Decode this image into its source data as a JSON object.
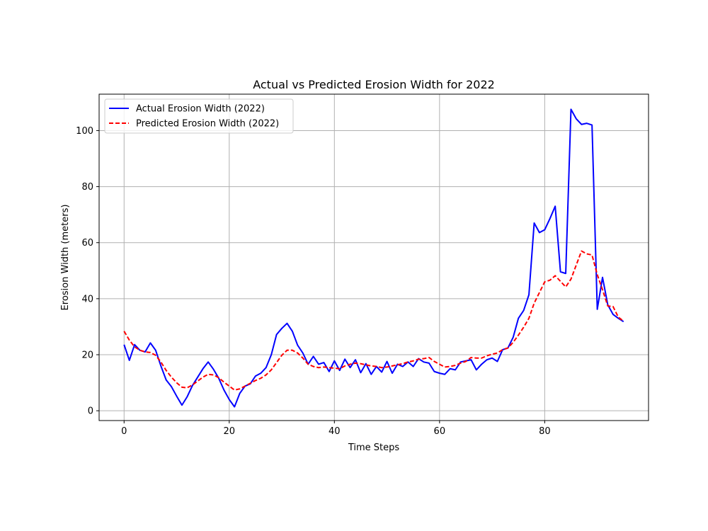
{
  "chart_data": {
    "type": "line",
    "title": "Actual vs Predicted Erosion Width for 2022",
    "xlabel": "Time Steps",
    "ylabel": "Erosion Width (meters)",
    "xlim": [
      -4.75,
      99.75
    ],
    "ylim": [
      -3.5,
      113
    ],
    "xticks": [
      0,
      20,
      40,
      60,
      80
    ],
    "yticks": [
      0,
      20,
      40,
      60,
      80,
      100
    ],
    "grid": true,
    "legend_position": "top-left",
    "x": [
      0,
      1,
      2,
      3,
      4,
      5,
      6,
      7,
      8,
      9,
      10,
      11,
      12,
      13,
      14,
      15,
      16,
      17,
      18,
      19,
      20,
      21,
      22,
      23,
      24,
      25,
      26,
      27,
      28,
      29,
      30,
      31,
      32,
      33,
      34,
      35,
      36,
      37,
      38,
      39,
      40,
      41,
      42,
      43,
      44,
      45,
      46,
      47,
      48,
      49,
      50,
      51,
      52,
      53,
      54,
      55,
      56,
      57,
      58,
      59,
      60,
      61,
      62,
      63,
      64,
      65,
      66,
      67,
      68,
      69,
      70,
      71,
      72,
      73,
      74,
      75,
      76,
      77,
      78,
      79,
      80,
      81,
      82,
      83,
      84,
      85,
      86,
      87,
      88,
      89,
      90,
      91,
      92,
      93,
      94,
      95
    ],
    "series": [
      {
        "name": "Actual Erosion Width (2022)",
        "color": "#0000ff",
        "style": "solid",
        "values": [
          23.6,
          18.0,
          23.6,
          21.6,
          21.0,
          24.2,
          21.6,
          16.0,
          11.0,
          8.6,
          5.2,
          2.0,
          5.0,
          9.0,
          12.0,
          15.0,
          17.4,
          14.8,
          11.6,
          7.4,
          4.0,
          1.4,
          6.2,
          8.8,
          9.6,
          12.4,
          13.4,
          15.4,
          20.0,
          27.2,
          29.4,
          31.2,
          28.4,
          23.4,
          20.6,
          16.6,
          19.4,
          16.6,
          17.2,
          14.0,
          17.8,
          14.4,
          18.4,
          15.4,
          18.2,
          13.6,
          16.8,
          13.0,
          15.8,
          13.8,
          17.6,
          13.4,
          16.6,
          15.8,
          17.4,
          15.8,
          18.6,
          17.4,
          17.0,
          14.0,
          13.4,
          13.0,
          15.0,
          14.6,
          17.4,
          17.8,
          18.2,
          14.6,
          16.6,
          18.2,
          18.8,
          17.6,
          21.8,
          22.4,
          26.2,
          33.0,
          35.8,
          41.4,
          67.0,
          63.6,
          64.6,
          68.6,
          73.0,
          49.6,
          49.0,
          107.6,
          104.2,
          102.2,
          102.6,
          102.0,
          36.2,
          47.6,
          37.8,
          34.4,
          33.0,
          31.8
        ],
        "x": [
          0,
          1,
          2,
          3,
          4,
          5,
          6,
          7,
          8,
          9,
          10,
          11,
          12,
          13,
          14,
          15,
          16,
          17,
          18,
          19,
          20,
          21,
          22,
          23,
          24,
          25,
          26,
          27,
          28,
          29,
          30,
          31,
          32,
          33,
          34,
          35,
          36,
          37,
          38,
          39,
          40,
          41,
          42,
          43,
          44,
          45,
          46,
          47,
          48,
          49,
          50,
          51,
          52,
          53,
          54,
          55,
          56,
          57,
          58,
          59,
          60,
          61,
          62,
          63,
          64,
          65,
          66,
          67,
          68,
          69,
          70,
          71,
          72,
          73,
          74,
          75,
          76,
          77,
          78,
          79,
          80,
          81,
          82,
          83,
          84,
          85,
          86,
          87,
          88,
          89,
          90,
          91,
          92,
          93,
          94,
          95
        ]
      },
      {
        "name": "Predicted Erosion Width (2022)",
        "color": "#ff0000",
        "style": "dashed",
        "values": [
          28.4,
          25.2,
          22.8,
          21.6,
          21.0,
          20.8,
          19.8,
          17.4,
          14.4,
          12.0,
          10.0,
          8.4,
          8.2,
          9.2,
          10.6,
          12.0,
          13.0,
          12.8,
          11.8,
          10.2,
          8.8,
          7.4,
          7.8,
          8.8,
          9.8,
          10.8,
          11.6,
          12.8,
          14.6,
          17.2,
          19.8,
          21.6,
          21.6,
          20.6,
          18.8,
          16.6,
          15.8,
          15.4,
          15.6,
          15.4,
          15.2,
          15.0,
          16.0,
          16.6,
          17.0,
          16.8,
          16.4,
          16.0,
          15.8,
          15.4,
          15.6,
          16.0,
          16.4,
          16.8,
          17.4,
          17.8,
          18.4,
          18.6,
          19.0,
          17.6,
          16.6,
          15.6,
          15.8,
          16.2,
          17.0,
          17.6,
          19.0,
          18.8,
          18.8,
          19.6,
          20.2,
          20.6,
          21.8,
          22.4,
          24.4,
          27.0,
          29.8,
          33.0,
          38.4,
          42.2,
          46.0,
          46.6,
          48.2,
          46.2,
          44.2,
          47.0,
          52.0,
          57.0,
          56.0,
          55.6,
          48.6,
          43.2,
          37.4,
          37.2,
          33.4,
          32.0
        ],
        "x": [
          0,
          1,
          2,
          3,
          4,
          5,
          6,
          7,
          8,
          9,
          10,
          11,
          12,
          13,
          14,
          15,
          16,
          17,
          18,
          19,
          20,
          21,
          22,
          23,
          24,
          25,
          26,
          27,
          28,
          29,
          30,
          31,
          32,
          33,
          34,
          35,
          36,
          37,
          38,
          39,
          40,
          41,
          42,
          43,
          44,
          45,
          46,
          47,
          48,
          49,
          50,
          51,
          52,
          53,
          54,
          55,
          56,
          57,
          58,
          59,
          60,
          61,
          62,
          63,
          64,
          65,
          66,
          67,
          68,
          69,
          70,
          71,
          72,
          73,
          74,
          75,
          76,
          77,
          78,
          79,
          80,
          81,
          82,
          83,
          84,
          85,
          86,
          87,
          88,
          89,
          90,
          91,
          92,
          93,
          94,
          95
        ]
      }
    ]
  }
}
